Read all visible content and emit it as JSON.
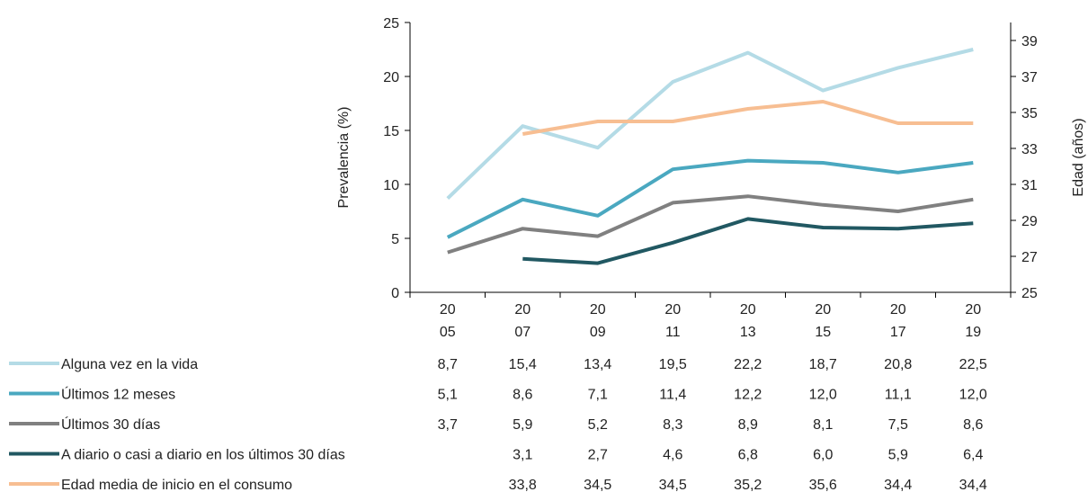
{
  "chart_data": {
    "type": "line",
    "x": [
      "2005",
      "2007",
      "2009",
      "2011",
      "2013",
      "2015",
      "2017",
      "2019"
    ],
    "x_labels": [
      [
        "20",
        "05"
      ],
      [
        "20",
        "07"
      ],
      [
        "20",
        "09"
      ],
      [
        "20",
        "11"
      ],
      [
        "20",
        "13"
      ],
      [
        "20",
        "15"
      ],
      [
        "20",
        "17"
      ],
      [
        "20",
        "19"
      ]
    ],
    "ylabel_left": "Prevalencia (%)",
    "ylabel_right": "Edad (años)",
    "ylim_left": [
      0,
      25
    ],
    "yticks_left": [
      "0",
      "5",
      "10",
      "15",
      "20",
      "25"
    ],
    "ylim_right": [
      25,
      40
    ],
    "yticks_right": [
      "25",
      "27",
      "29",
      "31",
      "33",
      "35",
      "37",
      "39"
    ],
    "grid": false,
    "legend": "bottom-left table",
    "series": [
      {
        "name": "Alguna vez en la vida",
        "axis": "left",
        "color": "#b4dbe6",
        "values": [
          8.7,
          15.4,
          13.4,
          19.5,
          22.2,
          18.7,
          20.8,
          22.5
        ],
        "labels": [
          "8,7",
          "15,4",
          "13,4",
          "19,5",
          "22,2",
          "18,7",
          "20,8",
          "22,5"
        ]
      },
      {
        "name": "Últimos 12 meses",
        "axis": "left",
        "color": "#4aa8c0",
        "values": [
          5.1,
          8.6,
          7.1,
          11.4,
          12.2,
          12.0,
          11.1,
          12.0
        ],
        "labels": [
          "5,1",
          "8,6",
          "7,1",
          "11,4",
          "12,2",
          "12,0",
          "11,1",
          "12,0"
        ]
      },
      {
        "name": "Últimos 30 días",
        "axis": "left",
        "color": "#808080",
        "values": [
          3.7,
          5.9,
          5.2,
          8.3,
          8.9,
          8.1,
          7.5,
          8.6
        ],
        "labels": [
          "3,7",
          "5,9",
          "5,2",
          "8,3",
          "8,9",
          "8,1",
          "7,5",
          "8,6"
        ]
      },
      {
        "name": "A diario o casi a diario en los últimos 30 días",
        "axis": "left",
        "color": "#215862",
        "values": [
          null,
          3.1,
          2.7,
          4.6,
          6.8,
          6.0,
          5.9,
          6.4
        ],
        "labels": [
          "",
          "3,1",
          "2,7",
          "4,6",
          "6,8",
          "6,0",
          "5,9",
          "6,4"
        ]
      },
      {
        "name": "Edad media de inicio en el consumo",
        "axis": "right",
        "color": "#f7be92",
        "values": [
          null,
          33.8,
          34.5,
          34.5,
          35.2,
          35.6,
          34.4,
          34.4
        ],
        "labels": [
          "",
          "33,8",
          "34,5",
          "34,5",
          "35,2",
          "35,6",
          "34,4",
          "34,4"
        ]
      }
    ]
  }
}
